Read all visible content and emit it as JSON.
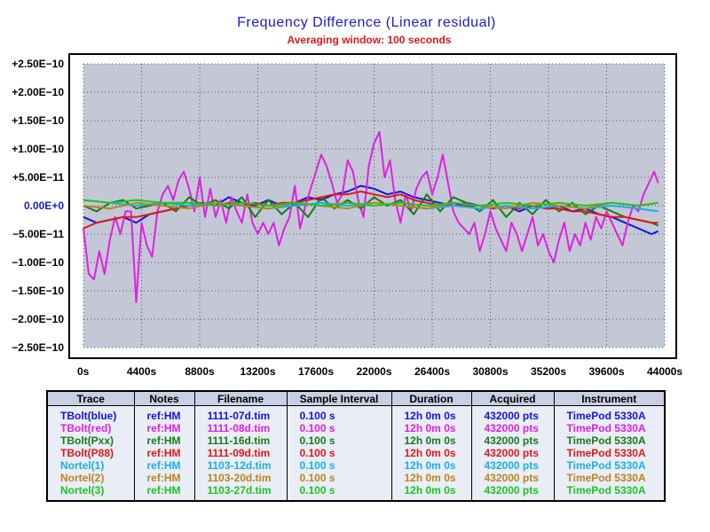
{
  "chart_data": {
    "type": "line",
    "title": "Frequency Difference (Linear residual)",
    "subtitle": "Averaging window: 100 seconds",
    "xlabel": "",
    "ylabel": "",
    "xlim": [
      0,
      44000
    ],
    "ylim": [
      -2.5e-10,
      2.5e-10
    ],
    "grid": true,
    "x_ticks": [
      0,
      4400,
      8800,
      13200,
      17600,
      22000,
      26400,
      30800,
      35200,
      39600,
      44000
    ],
    "x_tick_labels": [
      "0s",
      "4400s",
      "8800s",
      "13200s",
      "17600s",
      "22000s",
      "26400s",
      "30800s",
      "35200s",
      "39600s",
      "44000s"
    ],
    "y_ticks": [
      2.5e-10,
      2e-10,
      1.5e-10,
      1e-10,
      5e-11,
      0,
      -5e-11,
      -1e-10,
      -1.5e-10,
      -2e-10,
      -2.5e-10
    ],
    "y_tick_labels": [
      "+2.50E−10",
      "+2.00E−10",
      "+1.50E−10",
      "+1.00E−10",
      "+5.00E−11",
      "0.00E+0",
      "−5.00E−11",
      "−1.00E−10",
      "−1.50E−10",
      "−2.00E−10",
      "−2.50E−10"
    ],
    "series": [
      {
        "name": "TBolt(blue)",
        "color": "#1414e0",
        "x": [
          0,
          1000,
          2000,
          3000,
          4000,
          5000,
          6000,
          7000,
          8000,
          9000,
          10000,
          11000,
          12000,
          13000,
          14000,
          15000,
          16000,
          17000,
          18000,
          19000,
          20000,
          21000,
          22000,
          23000,
          24000,
          25000,
          26000,
          27000,
          28000,
          29000,
          30000,
          31000,
          32000,
          33000,
          34000,
          35000,
          36000,
          37000,
          38000,
          39000,
          40000,
          41000,
          42000,
          43000,
          43500
        ],
        "y": [
          -2e-11,
          -3e-11,
          -2.5e-11,
          -2e-11,
          -3e-11,
          -1.5e-11,
          -1e-11,
          -5e-12,
          0,
          5e-12,
          0,
          1.5e-11,
          5e-12,
          0,
          1e-11,
          0,
          5e-12,
          1.5e-11,
          1e-11,
          2e-11,
          2.5e-11,
          3.5e-11,
          3e-11,
          2e-11,
          2.5e-11,
          1.5e-11,
          1e-11,
          5e-12,
          0,
          5e-12,
          0,
          -5e-12,
          0,
          -1e-11,
          0,
          -5e-12,
          0,
          -1e-11,
          -5e-12,
          -1.5e-11,
          -2e-11,
          -3e-11,
          -4e-11,
          -5e-11,
          -4.5e-11
        ]
      },
      {
        "name": "TBolt(red)",
        "color": "#e020e0",
        "x": [
          0,
          400,
          800,
          1200,
          1600,
          2000,
          2400,
          2800,
          3200,
          3600,
          4000,
          4400,
          4800,
          5200,
          5600,
          6000,
          6400,
          6800,
          7200,
          7600,
          8000,
          8400,
          8800,
          9200,
          9600,
          10000,
          10400,
          10800,
          11200,
          11600,
          12000,
          12400,
          12800,
          13200,
          13600,
          14000,
          14400,
          14800,
          15200,
          15600,
          16000,
          16400,
          16800,
          17200,
          17600,
          18000,
          18400,
          18800,
          19200,
          19600,
          20000,
          20400,
          20800,
          21200,
          21600,
          22000,
          22400,
          22800,
          23200,
          23600,
          24000,
          24400,
          24800,
          25200,
          25600,
          26000,
          26400,
          26800,
          27200,
          27600,
          28000,
          28400,
          28800,
          29200,
          29600,
          30000,
          30400,
          30800,
          31200,
          31600,
          32000,
          32400,
          32800,
          33200,
          33600,
          34000,
          34400,
          34800,
          35200,
          35600,
          36000,
          36400,
          36800,
          37200,
          37600,
          38000,
          38400,
          38800,
          39200,
          39600,
          40000,
          40400,
          40800,
          41200,
          41600,
          42000,
          42400,
          42800,
          43200,
          43500
        ],
        "y": [
          -4e-11,
          -1.2e-10,
          -1.3e-10,
          -8e-11,
          -1.2e-10,
          -6e-11,
          -2e-11,
          -5e-11,
          -1e-11,
          -1e-11,
          -1.7e-10,
          -3e-11,
          -7e-11,
          -9e-11,
          -1e-11,
          2e-11,
          3.5e-11,
          1e-11,
          4.5e-11,
          6e-11,
          3e-11,
          -1e-11,
          5e-11,
          -2e-11,
          3e-11,
          -2e-11,
          1e-11,
          -3e-11,
          1.5e-11,
          -1e-11,
          -3e-11,
          2e-11,
          -3e-11,
          -5e-11,
          -3e-11,
          -5e-11,
          -3e-11,
          -7e-11,
          -4e-11,
          -2e-11,
          3.5e-11,
          -4e-11,
          0,
          3e-11,
          6e-11,
          9e-11,
          7e-11,
          4e-11,
          5e-12,
          2e-11,
          8e-11,
          6e-11,
          1e-11,
          -2e-11,
          7e-11,
          1.1e-10,
          1.3e-10,
          5e-11,
          8e-11,
          1e-11,
          -3e-11,
          2e-11,
          -1e-11,
          3e-11,
          5e-11,
          6e-11,
          2e-11,
          5e-11,
          9e-11,
          4e-11,
          -1e-11,
          -3e-11,
          -4e-11,
          -5e-11,
          -3e-11,
          -8e-11,
          -5e-11,
          -1e-11,
          -4e-11,
          -6e-11,
          -8e-11,
          -3e-11,
          -5e-11,
          -8e-11,
          -5e-11,
          -2e-11,
          -7e-11,
          -5e-11,
          -8e-11,
          -1e-10,
          -6e-11,
          -3e-11,
          -8e-11,
          -5e-11,
          -7e-11,
          -3e-11,
          -6e-11,
          -2e-11,
          -4e-11,
          -1e-11,
          -3e-11,
          -5e-11,
          -7e-11,
          -3e-11,
          0,
          -1e-11,
          2e-11,
          4e-11,
          6e-11,
          4e-11
        ]
      },
      {
        "name": "TBolt(Pxx)",
        "color": "#1a7a1a",
        "x": [
          0,
          1000,
          2000,
          3000,
          4000,
          5000,
          6000,
          7000,
          8000,
          9000,
          10000,
          11000,
          12000,
          13000,
          14000,
          15000,
          16000,
          17000,
          18000,
          19000,
          20000,
          21000,
          22000,
          23000,
          24000,
          25000,
          26000,
          27000,
          28000,
          29000,
          30000,
          31000,
          32000,
          33000,
          34000,
          35000,
          36000,
          37000,
          38000,
          39000,
          40000,
          41000,
          42000,
          43000,
          43500
        ],
        "y": [
          0,
          -1e-11,
          5e-12,
          1e-11,
          -5e-12,
          0,
          5e-12,
          -1e-11,
          1.5e-11,
          0,
          1e-11,
          -5e-12,
          1.5e-11,
          -2e-11,
          1e-11,
          -1.5e-11,
          5e-12,
          -2e-11,
          1.5e-11,
          -5e-12,
          1e-11,
          -5e-12,
          1.5e-11,
          0,
          1e-11,
          -1.5e-11,
          2e-11,
          -1e-11,
          1.5e-11,
          5e-12,
          -1e-11,
          1e-11,
          -2e-11,
          5e-12,
          -1.5e-11,
          1e-11,
          -1e-11,
          5e-12,
          -1.5e-11,
          0,
          -1e-11,
          -2e-11,
          -2.5e-11,
          -3e-11,
          -3.5e-11
        ]
      },
      {
        "name": "TBolt(P88)",
        "color": "#e01818",
        "x": [
          0,
          1000,
          2000,
          3000,
          4000,
          5000,
          6000,
          7000,
          8000,
          9000,
          10000,
          11000,
          12000,
          13000,
          14000,
          15000,
          16000,
          17000,
          18000,
          19000,
          20000,
          21000,
          22000,
          23000,
          24000,
          25000,
          26000,
          27000,
          28000,
          29000,
          30000,
          31000,
          32000,
          33000,
          34000,
          35000,
          36000,
          37000,
          38000,
          39000,
          40000,
          41000,
          42000,
          43000,
          43500
        ],
        "y": [
          -4e-11,
          -3e-11,
          -2.5e-11,
          -2e-11,
          -2e-11,
          -1.5e-11,
          -1e-11,
          -5e-12,
          0,
          5e-12,
          0,
          5e-12,
          0,
          5e-12,
          0,
          5e-12,
          5e-12,
          1e-11,
          1.5e-11,
          2e-11,
          2e-11,
          2.5e-11,
          2e-11,
          1.5e-11,
          2e-11,
          1e-11,
          5e-12,
          0,
          0,
          0,
          0,
          -5e-12,
          0,
          -5e-12,
          0,
          -5e-12,
          -5e-12,
          -1e-11,
          -1e-11,
          -1.5e-11,
          -2e-11,
          -2e-11,
          -2.5e-11,
          -3e-11,
          -3e-11
        ]
      },
      {
        "name": "Nortel(1)",
        "color": "#18b0e8",
        "x": [
          0,
          2000,
          4000,
          6000,
          8000,
          10000,
          12000,
          14000,
          16000,
          18000,
          20000,
          22000,
          24000,
          26000,
          28000,
          30000,
          32000,
          34000,
          36000,
          38000,
          40000,
          42000,
          43500
        ],
        "y": [
          1e-11,
          5e-12,
          0,
          5e-12,
          0,
          5e-12,
          0,
          -5e-12,
          0,
          5e-12,
          0,
          5e-12,
          0,
          -5e-12,
          0,
          -5e-12,
          0,
          -5e-12,
          0,
          -5e-12,
          0,
          -5e-12,
          -1e-11
        ]
      },
      {
        "name": "Nortel(2)",
        "color": "#b8861e",
        "x": [
          0,
          2000,
          4000,
          6000,
          8000,
          10000,
          12000,
          14000,
          16000,
          18000,
          20000,
          22000,
          24000,
          26000,
          28000,
          30000,
          32000,
          34000,
          36000,
          38000,
          40000,
          42000,
          43500
        ],
        "y": [
          0,
          -5e-12,
          5e-12,
          0,
          -5e-12,
          5e-12,
          0,
          -5e-12,
          5e-12,
          0,
          -5e-12,
          5e-12,
          0,
          -5e-12,
          5e-12,
          0,
          -5e-12,
          5e-12,
          0,
          -5e-12,
          5e-12,
          0,
          5e-12
        ]
      },
      {
        "name": "Nortel(3)",
        "color": "#1ec41e",
        "x": [
          0,
          2000,
          4000,
          6000,
          8000,
          10000,
          12000,
          14000,
          16000,
          18000,
          20000,
          22000,
          24000,
          26000,
          28000,
          30000,
          32000,
          34000,
          36000,
          38000,
          40000,
          42000,
          43500
        ],
        "y": [
          1e-11,
          5e-12,
          1e-11,
          5e-12,
          5e-12,
          0,
          5e-12,
          0,
          5e-12,
          0,
          5e-12,
          0,
          5e-12,
          0,
          5e-12,
          0,
          5e-12,
          0,
          5e-12,
          0,
          5e-12,
          0,
          5e-12
        ]
      }
    ]
  },
  "legend_table": {
    "headers": [
      "Trace",
      "Notes",
      "Filename",
      "Sample Interval",
      "Duration",
      "Acquired",
      "Instrument"
    ],
    "rows": [
      {
        "trace": "TBolt(blue)",
        "notes": "ref:HM",
        "filename": "1111-07d.tim",
        "interval": "0.100 s",
        "duration": "12h 0m 0s",
        "acquired": "432000 pts",
        "instrument": "TimePod 5330A",
        "color": "#1414e0"
      },
      {
        "trace": "TBolt(red)",
        "notes": "ref:HM",
        "filename": "1111-08d.tim",
        "interval": "0.100 s",
        "duration": "12h 0m 0s",
        "acquired": "432000 pts",
        "instrument": "TimePod 5330A",
        "color": "#e020e0"
      },
      {
        "trace": "TBolt(Pxx)",
        "notes": "ref:HM",
        "filename": "1111-16d.tim",
        "interval": "0.100 s",
        "duration": "12h 0m 0s",
        "acquired": "432000 pts",
        "instrument": "TimePod 5330A",
        "color": "#1a7a1a"
      },
      {
        "trace": "TBolt(P88)",
        "notes": "ref:HM",
        "filename": "1111-09d.tim",
        "interval": "0.100 s",
        "duration": "12h 0m 0s",
        "acquired": "432000 pts",
        "instrument": "TimePod 5330A",
        "color": "#e01818"
      },
      {
        "trace": "Nortel(1)",
        "notes": "ref:HM",
        "filename": "1103-12d.tim",
        "interval": "0.100 s",
        "duration": "12h 0m 0s",
        "acquired": "432000 pts",
        "instrument": "TimePod 5330A",
        "color": "#18b0e8"
      },
      {
        "trace": "Nortel(2)",
        "notes": "ref:HM",
        "filename": "1103-20d.tim",
        "interval": "0.100 s",
        "duration": "12h 0m 0s",
        "acquired": "432000 pts",
        "instrument": "TimePod 5330A",
        "color": "#b8861e"
      },
      {
        "trace": "Nortel(3)",
        "notes": "ref:HM",
        "filename": "1103-27d.tim",
        "interval": "0.100 s",
        "duration": "12h 0m 0s",
        "acquired": "432000 pts",
        "instrument": "TimePod 5330A",
        "color": "#1ec41e"
      }
    ]
  }
}
